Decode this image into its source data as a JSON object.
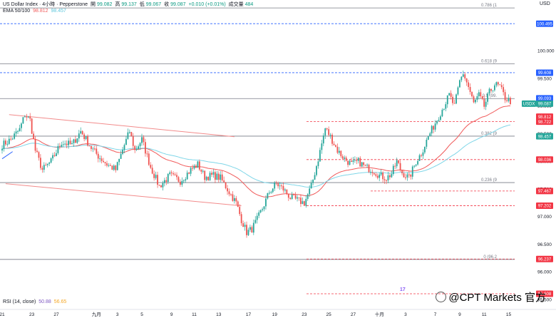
{
  "header": {
    "symbol_line": "US Dollar Index · 4小時 · Pepperstone",
    "o_label": "開",
    "o_value": "99.082",
    "h_label": "高",
    "h_value": "99.137",
    "l_label": "低",
    "l_value": "99.067",
    "c_label": "收",
    "c_value": "99.087",
    "change": "+0.010 (+0.01%)",
    "vol_label": "成交量",
    "vol_value": "484",
    "ema_label": "EMA 50/100",
    "ema50": "98.812",
    "ema100": "98.457",
    "currency": "USD"
  },
  "rsi": {
    "label": "RSI (14, close)",
    "v1": "50.88",
    "v2": "56.65"
  },
  "watermark": "@CPT Markets 官方",
  "tv_logo": "17",
  "colors": {
    "up": "#26a69a",
    "down": "#ef5350",
    "ema50": "#f05a5a",
    "ema100": "#7fd6e8",
    "blue": "#2962ff",
    "trend": "#f28b8b",
    "red_level": "#f23645"
  },
  "chart_data": {
    "type": "candlestick",
    "ylim": [
      95.35,
      100.82
    ],
    "x_ticks": [
      {
        "i": 0,
        "label": "21"
      },
      {
        "i": 17,
        "label": "23"
      },
      {
        "i": 31,
        "label": "27"
      },
      {
        "i": 54,
        "label": "九月"
      },
      {
        "i": 66,
        "label": "3"
      },
      {
        "i": 80,
        "label": "5"
      },
      {
        "i": 97,
        "label": "9"
      },
      {
        "i": 110,
        "label": "11"
      },
      {
        "i": 124,
        "label": "13"
      },
      {
        "i": 141,
        "label": "17"
      },
      {
        "i": 156,
        "label": "19"
      },
      {
        "i": 173,
        "label": "23"
      },
      {
        "i": 187,
        "label": "25"
      },
      {
        "i": 201,
        "label": "27"
      },
      {
        "i": 216,
        "label": "十月"
      },
      {
        "i": 231,
        "label": "3"
      },
      {
        "i": 248,
        "label": "7"
      },
      {
        "i": 262,
        "label": "9"
      },
      {
        "i": 276,
        "label": "11"
      },
      {
        "i": 290,
        "label": "15"
      }
    ],
    "y_ticks": [
      "95.500",
      "96.000",
      "96.500",
      "97.000",
      "97.500",
      "98.000",
      "98.500",
      "99.000",
      "99.500",
      "100.000"
    ],
    "y_tick_values": [
      95.5,
      96.0,
      96.5,
      97.0,
      97.5,
      98.0,
      98.5,
      99.0,
      99.5,
      100.0
    ],
    "fib_levels": [
      {
        "value": 100.78,
        "label": "0.786 (1"
      },
      {
        "value": 99.77,
        "label": "0.618 (9"
      },
      {
        "value": 99.14,
        "label": "0.5 (99."
      },
      {
        "value": 98.46,
        "label": "0.382 (9"
      },
      {
        "value": 97.62,
        "label": "0.236 (9"
      },
      {
        "value": 96.23,
        "label": "0 (96.2"
      }
    ],
    "levels": [
      {
        "value": 100.495,
        "label": "100.495",
        "style": "blue"
      },
      {
        "value": 99.608,
        "label": "99.608",
        "style": "blue"
      },
      {
        "value": 98.722,
        "label": "98.722",
        "style": "red"
      },
      {
        "value": 98.036,
        "label": "98.036",
        "style": "red"
      },
      {
        "value": 97.467,
        "label": "97.467",
        "style": "red"
      },
      {
        "value": 97.202,
        "label": "97.202",
        "style": "red"
      },
      {
        "value": 96.237,
        "label": "96.237",
        "style": "red"
      },
      {
        "value": 95.608,
        "label": "95.608",
        "style": "red"
      }
    ],
    "price_tags": [
      {
        "value": 99.093,
        "label": "99.093",
        "color": "#2962ff"
      },
      {
        "value": 98.812,
        "label": "98.812",
        "color": "#f23645"
      },
      {
        "value": 98.457,
        "label": "98.457",
        "color": "#26a69a"
      },
      {
        "value": 99.087,
        "label": "99.087",
        "color": "#26a69a",
        "symbol": "USDX"
      }
    ],
    "close_path": [
      [
        0,
        98.3
      ],
      [
        5,
        98.4
      ],
      [
        10,
        98.58
      ],
      [
        13,
        98.85
      ],
      [
        16,
        98.75
      ],
      [
        19,
        98.2
      ],
      [
        23,
        97.85
      ],
      [
        28,
        98.0
      ],
      [
        34,
        98.35
      ],
      [
        40,
        98.3
      ],
      [
        45,
        98.55
      ],
      [
        51,
        98.25
      ],
      [
        55,
        98.1
      ],
      [
        60,
        97.95
      ],
      [
        65,
        97.85
      ],
      [
        70,
        98.3
      ],
      [
        73,
        98.55
      ],
      [
        76,
        98.2
      ],
      [
        80,
        98.4
      ],
      [
        85,
        97.9
      ],
      [
        90,
        97.55
      ],
      [
        96,
        97.75
      ],
      [
        102,
        97.65
      ],
      [
        108,
        97.85
      ],
      [
        112,
        97.95
      ],
      [
        116,
        97.72
      ],
      [
        121,
        97.75
      ],
      [
        125,
        97.7
      ],
      [
        130,
        97.45
      ],
      [
        134,
        97.25
      ],
      [
        137,
        96.95
      ],
      [
        140,
        96.72
      ],
      [
        143,
        96.78
      ],
      [
        146,
        96.95
      ],
      [
        149,
        97.15
      ],
      [
        153,
        97.45
      ],
      [
        157,
        97.6
      ],
      [
        161,
        97.5
      ],
      [
        165,
        97.35
      ],
      [
        169,
        97.3
      ],
      [
        173,
        97.25
      ],
      [
        177,
        97.55
      ],
      [
        181,
        98.05
      ],
      [
        185,
        98.6
      ],
      [
        188,
        98.45
      ],
      [
        192,
        98.2
      ],
      [
        196,
        98.05
      ],
      [
        200,
        97.95
      ],
      [
        204,
        98.0
      ],
      [
        208,
        97.9
      ],
      [
        212,
        97.85
      ],
      [
        216,
        97.75
      ],
      [
        220,
        97.7
      ],
      [
        223,
        97.78
      ],
      [
        226,
        98.0
      ],
      [
        229,
        97.8
      ],
      [
        233,
        97.7
      ],
      [
        237,
        98.0
      ],
      [
        240,
        98.15
      ],
      [
        244,
        98.45
      ],
      [
        248,
        98.7
      ],
      [
        252,
        98.95
      ],
      [
        256,
        99.2
      ],
      [
        259,
        99.0
      ],
      [
        262,
        99.45
      ],
      [
        264,
        99.6
      ],
      [
        267,
        99.35
      ],
      [
        270,
        99.05
      ],
      [
        273,
        99.2
      ],
      [
        276,
        99.0
      ],
      [
        279,
        99.25
      ],
      [
        282,
        99.4
      ],
      [
        285,
        99.35
      ],
      [
        288,
        99.15
      ],
      [
        291,
        99.09
      ]
    ]
  }
}
